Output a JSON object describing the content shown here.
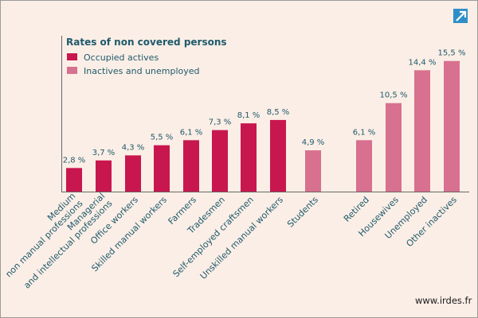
{
  "chart_data": {
    "type": "bar",
    "legend": {
      "title": "Rates of non covered persons",
      "position": "top-left"
    },
    "ylim": [
      0,
      17
    ],
    "grid": false,
    "series": [
      {
        "name": "Occupied actives",
        "color": "#c8174f",
        "categories": [
          [
            "Medium",
            "non manual professions"
          ],
          [
            "Managerial",
            "and intellectual professions"
          ],
          [
            "Office workers"
          ],
          [
            "Skilled manual workers"
          ],
          [
            "Farmers"
          ],
          [
            "Tradesmen"
          ],
          [
            "Self-employed craftsmen"
          ],
          [
            "Unskilled manual workers"
          ]
        ],
        "values": [
          2.8,
          3.7,
          4.3,
          5.5,
          6.1,
          7.3,
          8.1,
          8.5
        ],
        "value_labels": [
          "2,8 %",
          "3,7 %",
          "4,3 %",
          "5,5 %",
          "6,1 %",
          "7,3 %",
          "8,1 %",
          "8,5 %"
        ]
      },
      {
        "name": "Inactives and unemployed",
        "color": "#d8708f",
        "categories": [
          [
            "Students"
          ],
          [
            "Retired"
          ],
          [
            "Housewives"
          ],
          [
            "Unemployed"
          ],
          [
            "Other inactives"
          ]
        ],
        "values": [
          4.9,
          6.1,
          10.5,
          14.4,
          15.5
        ],
        "value_labels": [
          "4,9 %",
          "6,1 %",
          "10,5 %",
          "14,4 %",
          "15,5 %"
        ]
      }
    ]
  },
  "source_text": "www.irdes.fr",
  "corner_icon": "expand-arrow-icon",
  "colors": {
    "background": "#fbeee6",
    "axis": "#666666",
    "text": "#1f5a6b",
    "icon": "#2e8fc8"
  }
}
